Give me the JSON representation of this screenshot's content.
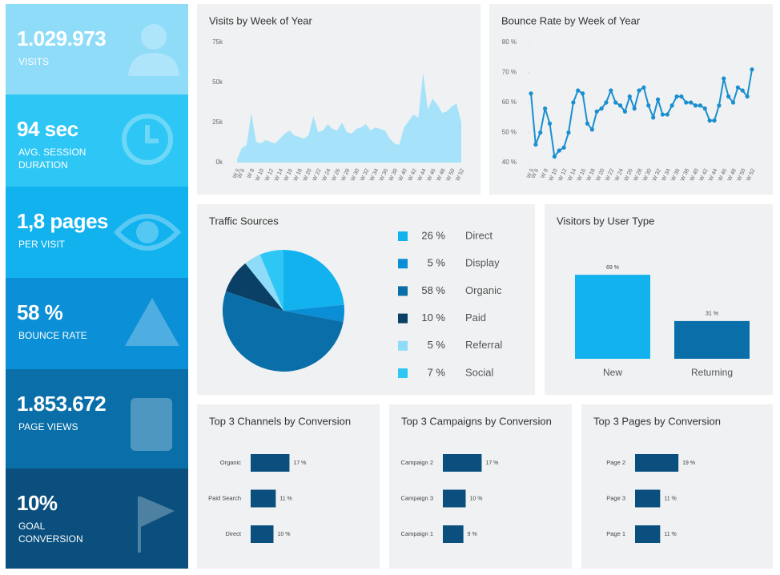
{
  "kpis": [
    {
      "value": "1.029.973",
      "label": "VISITS"
    },
    {
      "value": "94 sec",
      "label": "AVG. SESSION DURATION"
    },
    {
      "value": "1,8 pages",
      "label": "PER VISIT"
    },
    {
      "value": "58 %",
      "label": "BOUNCE RATE"
    },
    {
      "value": "1.853.672",
      "label": "PAGE VIEWS"
    },
    {
      "value": "10%",
      "label": "GOAL CONVERSION"
    }
  ],
  "chart_data": [
    {
      "type": "area",
      "title": "Visits by Week of Year",
      "color": "#a6e3fa",
      "categories": [
        "W 5",
        "W 6",
        null,
        "W 8",
        null,
        "W 10",
        null,
        "W 12",
        null,
        "W 14",
        null,
        "W 16",
        null,
        "W 18",
        null,
        "W 20",
        null,
        "W 22",
        null,
        "W 24",
        null,
        "W 26",
        null,
        "W 28",
        null,
        "W 30",
        null,
        "W 32",
        null,
        "W 34",
        null,
        "W 36",
        null,
        "W 38",
        null,
        "W 40",
        null,
        "W 42",
        null,
        "W 44",
        null,
        "W 46",
        null,
        "W 48",
        null,
        "W 50",
        null,
        "W 52"
      ],
      "values": [
        2000,
        9000,
        11000,
        31000,
        13000,
        12000,
        14000,
        13000,
        12000,
        15000,
        18000,
        20000,
        17000,
        16000,
        15000,
        17000,
        29000,
        19000,
        20000,
        24000,
        21000,
        20000,
        25000,
        19000,
        18000,
        21000,
        22000,
        24000,
        20000,
        22000,
        21000,
        20000,
        15000,
        12000,
        11000,
        22000,
        26000,
        30000,
        28000,
        56000,
        33000,
        40000,
        36000,
        31000,
        32000,
        35000,
        37000,
        25000
      ],
      "ylim": [
        0,
        75000
      ],
      "yticks": [
        {
          "value": 0,
          "label": "0k"
        },
        {
          "value": 25000,
          "label": "25k"
        },
        {
          "value": 50000,
          "label": "50k"
        },
        {
          "value": 75000,
          "label": "75k"
        }
      ]
    },
    {
      "type": "line",
      "title": "Bounce Rate by Week of Year",
      "color": "#1a8fd0",
      "categories": [
        "W 5",
        "W 6",
        null,
        "W 8",
        null,
        "W 10",
        null,
        "W 12",
        null,
        "W 14",
        null,
        "W 16",
        null,
        "W 18",
        null,
        "W 20",
        null,
        "W 22",
        null,
        "W 24",
        null,
        "W 26",
        null,
        "W 28",
        null,
        "W 30",
        null,
        "W 32",
        null,
        "W 34",
        null,
        "W 36",
        null,
        "W 38",
        null,
        "W 40",
        null,
        "W 42",
        null,
        "W 44",
        null,
        "W 46",
        null,
        "W 48",
        null,
        "W 50",
        null,
        "W 52"
      ],
      "values": [
        63,
        46,
        50,
        58,
        53,
        42,
        44,
        45,
        50,
        60,
        64,
        63,
        53,
        51,
        57,
        58,
        60,
        64,
        60,
        59,
        57,
        62,
        58,
        64,
        65,
        59,
        55,
        61,
        56,
        56,
        59,
        62,
        62,
        60,
        60,
        59,
        59,
        58,
        54,
        54,
        59,
        68,
        62,
        60,
        65,
        64,
        62,
        71
      ],
      "ylim": [
        40,
        80
      ],
      "yticks": [
        {
          "value": 40,
          "label": "40 %"
        },
        {
          "value": 50,
          "label": "50 %"
        },
        {
          "value": 60,
          "label": "60 %"
        },
        {
          "value": 70,
          "label": "70 %"
        },
        {
          "value": 80,
          "label": "80 %"
        }
      ]
    },
    {
      "type": "pie",
      "title": "Traffic Sources",
      "categories": [
        "Direct",
        "Display",
        "Organic",
        "Paid",
        "Referral",
        "Social"
      ],
      "values": [
        26,
        5,
        58,
        10,
        5,
        7
      ],
      "value_labels": [
        "26 %",
        "5 %",
        "58 %",
        "10 %",
        "5 %",
        "7 %"
      ],
      "colors": [
        "#12b2ef",
        "#0a8fd6",
        "#0a6fa8",
        "#0a3f66",
        "#8fdcf8",
        "#2ec6f4"
      ]
    },
    {
      "type": "bar",
      "title": "Visitors by User Type",
      "categories": [
        "New",
        "Returning"
      ],
      "values": [
        69,
        31
      ],
      "value_labels": [
        "69 %",
        "31 %"
      ],
      "colors": [
        "#12b2ef",
        "#0a6fa8"
      ]
    },
    {
      "type": "hbar",
      "title": "Top 3 Channels by Conversion",
      "color": "#0a4f7e",
      "categories": [
        "Organic",
        "Paid Search",
        "Direct"
      ],
      "values": [
        17,
        11,
        10
      ],
      "value_labels": [
        "17 %",
        "11 %",
        "10 %"
      ]
    },
    {
      "type": "hbar",
      "title": "Top 3 Campaigns by Conversion",
      "color": "#0a4f7e",
      "categories": [
        "Campaign 2",
        "Campaign 3",
        "Campaign 1"
      ],
      "values": [
        17,
        10,
        9
      ],
      "value_labels": [
        "17 %",
        "10 %",
        "9 %"
      ]
    },
    {
      "type": "hbar",
      "title": "Top 3 Pages by Conversion",
      "color": "#0a4f7e",
      "categories": [
        "Page 2",
        "Page 3",
        "Page 1"
      ],
      "values": [
        19,
        11,
        11
      ],
      "value_labels": [
        "19 %",
        "11 %",
        "11 %"
      ]
    }
  ]
}
